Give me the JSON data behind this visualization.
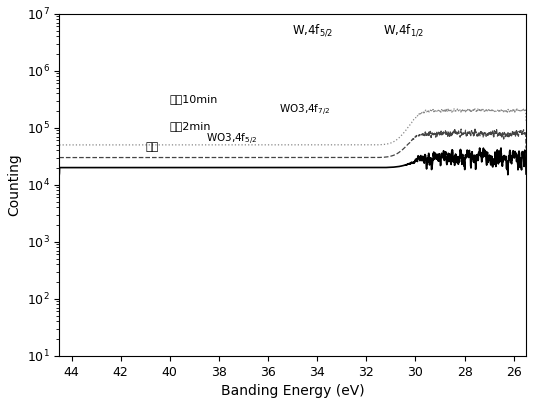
{
  "title": "",
  "xlabel": "Banding Energy (eV)",
  "ylabel": "Counting",
  "xlim": [
    44.5,
    25.5
  ],
  "ylim_log": [
    10.0,
    10000000.0
  ],
  "x_ticks": [
    44,
    42,
    40,
    38,
    36,
    34,
    32,
    30,
    28,
    26
  ],
  "line_solid_color": "#000000",
  "line_dash_color": "#444444",
  "line_dot_color": "#888888",
  "background": "#ffffff",
  "ann_W4f52": "W,4f$_{5/2}$",
  "ann_W4f12": "W,4f$_{1/2}$",
  "ann_WO3_72": "WO3,4f$_{7/2}$",
  "ann_WO3_52": "WO3,4f$_{5/2}$",
  "ann_10min": "激射10min",
  "ann_2min": "激射2min",
  "ann_surface": "表面"
}
